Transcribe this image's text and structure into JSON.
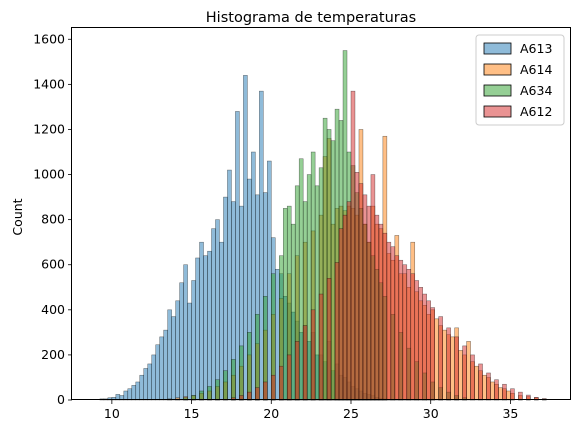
{
  "chart_data": {
    "type": "histogram",
    "title": "Histograma de temperaturas",
    "xlabel": "",
    "ylabel": "Count",
    "xlim": [
      7.5,
      38.8
    ],
    "ylim": [
      0,
      1650
    ],
    "x_ticks": [
      10,
      15,
      20,
      25,
      30,
      35
    ],
    "y_ticks": [
      0,
      200,
      400,
      600,
      800,
      1000,
      1200,
      1400,
      1600
    ],
    "bin_width": 0.25,
    "grid": false,
    "legend_position": "top-right",
    "series": [
      {
        "name": "A613",
        "color": "#1f77b4",
        "bins": [
          [
            9.25,
            5
          ],
          [
            9.5,
            5
          ],
          [
            9.75,
            10
          ],
          [
            10.0,
            12
          ],
          [
            10.25,
            25
          ],
          [
            10.5,
            20
          ],
          [
            10.75,
            40
          ],
          [
            11.0,
            50
          ],
          [
            11.25,
            65
          ],
          [
            11.5,
            80
          ],
          [
            11.75,
            110
          ],
          [
            12.0,
            140
          ],
          [
            12.25,
            160
          ],
          [
            12.5,
            200
          ],
          [
            12.75,
            245
          ],
          [
            13.0,
            280
          ],
          [
            13.25,
            310
          ],
          [
            13.5,
            400
          ],
          [
            13.75,
            370
          ],
          [
            14.0,
            440
          ],
          [
            14.25,
            520
          ],
          [
            14.5,
            600
          ],
          [
            14.75,
            430
          ],
          [
            15.0,
            530
          ],
          [
            15.25,
            630
          ],
          [
            15.5,
            700
          ],
          [
            15.75,
            640
          ],
          [
            16.0,
            660
          ],
          [
            16.25,
            760
          ],
          [
            16.5,
            800
          ],
          [
            16.75,
            700
          ],
          [
            17.0,
            900
          ],
          [
            17.25,
            1020
          ],
          [
            17.5,
            880
          ],
          [
            17.75,
            1280
          ],
          [
            18.0,
            860
          ],
          [
            18.25,
            1440
          ],
          [
            18.5,
            980
          ],
          [
            18.75,
            1100
          ],
          [
            19.0,
            910
          ],
          [
            19.25,
            1370
          ],
          [
            19.5,
            920
          ],
          [
            19.75,
            1060
          ],
          [
            20.0,
            720
          ],
          [
            20.25,
            580
          ],
          [
            20.5,
            560
          ],
          [
            20.75,
            460
          ],
          [
            21.0,
            430
          ],
          [
            21.25,
            390
          ],
          [
            21.5,
            350
          ],
          [
            21.75,
            300
          ],
          [
            22.0,
            330
          ],
          [
            22.25,
            260
          ],
          [
            22.5,
            300
          ],
          [
            22.75,
            200
          ],
          [
            23.0,
            200
          ],
          [
            23.25,
            170
          ],
          [
            23.5,
            260
          ],
          [
            23.75,
            130
          ],
          [
            24.0,
            160
          ],
          [
            24.25,
            110
          ],
          [
            24.5,
            100
          ],
          [
            24.75,
            80
          ],
          [
            25.0,
            60
          ],
          [
            25.25,
            50
          ],
          [
            25.5,
            40
          ],
          [
            25.75,
            30
          ],
          [
            26.0,
            25
          ],
          [
            26.25,
            20
          ],
          [
            26.5,
            12
          ],
          [
            26.75,
            8
          ],
          [
            27.0,
            5
          ]
        ]
      },
      {
        "name": "A614",
        "color": "#ff7f0e",
        "bins": [
          [
            13.5,
            5
          ],
          [
            14.0,
            10
          ],
          [
            14.5,
            15
          ],
          [
            15.0,
            20
          ],
          [
            15.5,
            30
          ],
          [
            16.0,
            40
          ],
          [
            16.5,
            60
          ],
          [
            17.0,
            80
          ],
          [
            17.5,
            110
          ],
          [
            18.0,
            150
          ],
          [
            18.5,
            200
          ],
          [
            19.0,
            250
          ],
          [
            19.5,
            310
          ],
          [
            20.0,
            380
          ],
          [
            20.5,
            450
          ],
          [
            21.0,
            560
          ],
          [
            21.5,
            640
          ],
          [
            22.0,
            700
          ],
          [
            22.5,
            750
          ],
          [
            23.0,
            820
          ],
          [
            23.25,
            1080
          ],
          [
            23.5,
            1160
          ],
          [
            23.75,
            780
          ],
          [
            24.0,
            850
          ],
          [
            24.25,
            860
          ],
          [
            24.5,
            840
          ],
          [
            24.75,
            860
          ],
          [
            25.0,
            850
          ],
          [
            25.25,
            820
          ],
          [
            25.5,
            1200
          ],
          [
            25.75,
            780
          ],
          [
            26.0,
            700
          ],
          [
            26.25,
            860
          ],
          [
            26.5,
            780
          ],
          [
            26.75,
            760
          ],
          [
            27.0,
            1170
          ],
          [
            27.25,
            650
          ],
          [
            27.5,
            620
          ],
          [
            27.75,
            730
          ],
          [
            28.0,
            560
          ],
          [
            28.25,
            560
          ],
          [
            28.5,
            500
          ],
          [
            28.75,
            700
          ],
          [
            29.0,
            480
          ],
          [
            29.25,
            440
          ],
          [
            29.5,
            420
          ],
          [
            29.75,
            380
          ],
          [
            30.0,
            400
          ],
          [
            30.25,
            360
          ],
          [
            30.5,
            330
          ],
          [
            30.75,
            310
          ],
          [
            31.0,
            290
          ],
          [
            31.25,
            280
          ],
          [
            31.5,
            320
          ],
          [
            31.75,
            220
          ],
          [
            32.0,
            200
          ],
          [
            32.25,
            260
          ],
          [
            32.5,
            170
          ],
          [
            32.75,
            150
          ],
          [
            33.0,
            130
          ],
          [
            33.25,
            110
          ],
          [
            33.5,
            100
          ],
          [
            33.75,
            80
          ],
          [
            34.0,
            70
          ],
          [
            34.25,
            55
          ],
          [
            34.5,
            50
          ],
          [
            34.75,
            40
          ],
          [
            35.0,
            30
          ],
          [
            35.5,
            20
          ],
          [
            36.0,
            15
          ],
          [
            36.5,
            10
          ],
          [
            37.0,
            5
          ]
        ]
      },
      {
        "name": "A634",
        "color": "#2ca02c",
        "bins": [
          [
            14.5,
            10
          ],
          [
            15.0,
            20
          ],
          [
            15.5,
            40
          ],
          [
            16.0,
            60
          ],
          [
            16.5,
            90
          ],
          [
            17.0,
            130
          ],
          [
            17.5,
            180
          ],
          [
            18.0,
            240
          ],
          [
            18.5,
            300
          ],
          [
            19.0,
            380
          ],
          [
            19.5,
            460
          ],
          [
            20.0,
            560
          ],
          [
            20.5,
            640
          ],
          [
            20.75,
            850
          ],
          [
            21.0,
            860
          ],
          [
            21.25,
            780
          ],
          [
            21.5,
            950
          ],
          [
            21.75,
            1070
          ],
          [
            22.0,
            880
          ],
          [
            22.25,
            1000
          ],
          [
            22.5,
            1100
          ],
          [
            22.75,
            950
          ],
          [
            23.0,
            1030
          ],
          [
            23.25,
            1250
          ],
          [
            23.5,
            1200
          ],
          [
            23.75,
            1150
          ],
          [
            24.0,
            1290
          ],
          [
            24.25,
            1240
          ],
          [
            24.5,
            1550
          ],
          [
            24.75,
            1100
          ],
          [
            25.0,
            1040
          ],
          [
            25.25,
            920
          ],
          [
            25.5,
            850
          ],
          [
            25.75,
            780
          ],
          [
            26.0,
            700
          ],
          [
            26.25,
            640
          ],
          [
            26.5,
            580
          ],
          [
            26.75,
            520
          ],
          [
            27.0,
            460
          ],
          [
            27.5,
            380
          ],
          [
            28.0,
            300
          ],
          [
            28.5,
            230
          ],
          [
            29.0,
            170
          ],
          [
            29.5,
            120
          ],
          [
            30.0,
            80
          ],
          [
            30.5,
            55
          ],
          [
            31.0,
            35
          ],
          [
            31.5,
            20
          ],
          [
            32.0,
            10
          ]
        ]
      },
      {
        "name": "A612",
        "color": "#d62728",
        "bins": [
          [
            17.5,
            10
          ],
          [
            18.0,
            20
          ],
          [
            18.5,
            35
          ],
          [
            19.0,
            55
          ],
          [
            19.5,
            80
          ],
          [
            20.0,
            110
          ],
          [
            20.5,
            150
          ],
          [
            21.0,
            200
          ],
          [
            21.5,
            260
          ],
          [
            22.0,
            330
          ],
          [
            22.5,
            400
          ],
          [
            23.0,
            470
          ],
          [
            23.5,
            540
          ],
          [
            24.0,
            610
          ],
          [
            24.25,
            760
          ],
          [
            24.5,
            820
          ],
          [
            24.75,
            880
          ],
          [
            25.0,
            1370
          ],
          [
            25.25,
            1010
          ],
          [
            25.5,
            960
          ],
          [
            25.75,
            910
          ],
          [
            26.0,
            860
          ],
          [
            26.25,
            1000
          ],
          [
            26.5,
            820
          ],
          [
            26.75,
            780
          ],
          [
            27.0,
            740
          ],
          [
            27.25,
            700
          ],
          [
            27.5,
            680
          ],
          [
            27.75,
            640
          ],
          [
            28.0,
            620
          ],
          [
            28.25,
            600
          ],
          [
            28.5,
            580
          ],
          [
            28.75,
            560
          ],
          [
            29.0,
            530
          ],
          [
            29.25,
            500
          ],
          [
            29.5,
            470
          ],
          [
            29.75,
            440
          ],
          [
            30.0,
            410
          ],
          [
            30.5,
            370
          ],
          [
            31.0,
            320
          ],
          [
            31.5,
            280
          ],
          [
            32.0,
            240
          ],
          [
            32.5,
            200
          ],
          [
            33.0,
            160
          ],
          [
            33.5,
            120
          ],
          [
            34.0,
            90
          ],
          [
            34.5,
            70
          ],
          [
            35.0,
            50
          ],
          [
            35.5,
            35
          ],
          [
            36.0,
            22
          ],
          [
            36.5,
            12
          ],
          [
            37.0,
            6
          ]
        ]
      }
    ]
  }
}
